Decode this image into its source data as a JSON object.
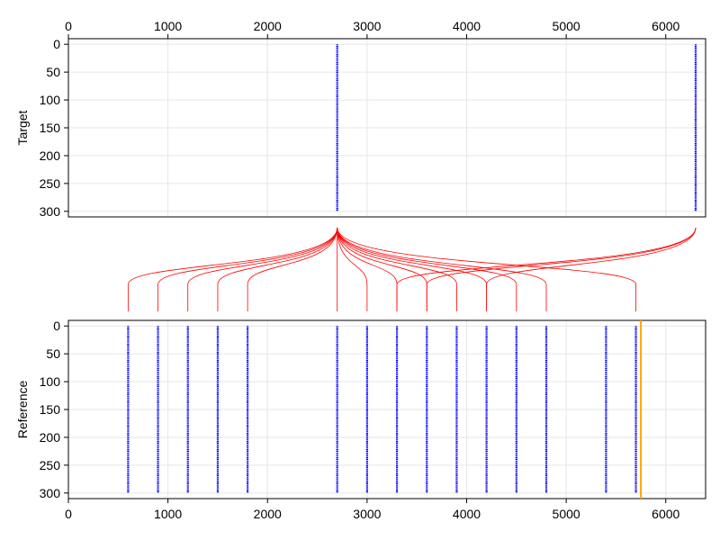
{
  "chart_data": [
    {
      "type": "scatter",
      "panel": "target",
      "title": "",
      "xlabel": "",
      "ylabel": "Target",
      "xlim": [
        0,
        6400
      ],
      "ylim": [
        310,
        -10
      ],
      "y_reversed": true,
      "x_ticks": [
        0,
        1000,
        2000,
        3000,
        4000,
        5000,
        6000
      ],
      "x_tick_labels": [
        "0",
        "1000",
        "2000",
        "3000",
        "4000",
        "5000",
        "6000"
      ],
      "y_ticks": [
        0,
        50,
        100,
        150,
        200,
        250,
        300
      ],
      "y_tick_labels": [
        "0",
        "50",
        "100",
        "150",
        "200",
        "250",
        "300"
      ],
      "x_axis_position": "top",
      "grid": true,
      "series": [
        {
          "x_positions": [
            2700,
            6300
          ],
          "y_range": [
            0,
            300
          ],
          "color": "#0000ff"
        }
      ]
    },
    {
      "type": "scatter",
      "panel": "reference",
      "title": "",
      "xlabel": "",
      "ylabel": "Reference",
      "xlim": [
        0,
        6400
      ],
      "ylim": [
        310,
        -10
      ],
      "y_reversed": true,
      "x_ticks": [
        0,
        1000,
        2000,
        3000,
        4000,
        5000,
        6000
      ],
      "x_tick_labels": [
        "0",
        "1000",
        "2000",
        "3000",
        "4000",
        "5000",
        "6000"
      ],
      "y_ticks": [
        0,
        50,
        100,
        150,
        200,
        250,
        300
      ],
      "y_tick_labels": [
        "0",
        "50",
        "100",
        "150",
        "200",
        "250",
        "300"
      ],
      "x_axis_position": "bottom",
      "grid": true,
      "series": [
        {
          "x_positions": [
            600,
            900,
            1200,
            1500,
            1800,
            2700,
            3000,
            3300,
            3600,
            3900,
            4200,
            4500,
            4800,
            5400,
            5700
          ],
          "y_range": [
            0,
            300
          ],
          "color": "#0000ff"
        }
      ],
      "vertical_line": {
        "x": 5750,
        "color": "#ffa500"
      }
    }
  ],
  "connections": {
    "color": "#ff0000",
    "links": [
      {
        "from_target": 2700,
        "to_reference": 600
      },
      {
        "from_target": 2700,
        "to_reference": 900
      },
      {
        "from_target": 2700,
        "to_reference": 1200
      },
      {
        "from_target": 2700,
        "to_reference": 1500
      },
      {
        "from_target": 2700,
        "to_reference": 1800
      },
      {
        "from_target": 2700,
        "to_reference": 2700
      },
      {
        "from_target": 2700,
        "to_reference": 3000
      },
      {
        "from_target": 2700,
        "to_reference": 3300
      },
      {
        "from_target": 2700,
        "to_reference": 3600
      },
      {
        "from_target": 2700,
        "to_reference": 3900
      },
      {
        "from_target": 2700,
        "to_reference": 4200
      },
      {
        "from_target": 2700,
        "to_reference": 4500
      },
      {
        "from_target": 2700,
        "to_reference": 4800
      },
      {
        "from_target": 2700,
        "to_reference": 5700
      },
      {
        "from_target": 6300,
        "to_reference": 3300
      },
      {
        "from_target": 6300,
        "to_reference": 3600
      },
      {
        "from_target": 6300,
        "to_reference": 4200
      }
    ]
  }
}
